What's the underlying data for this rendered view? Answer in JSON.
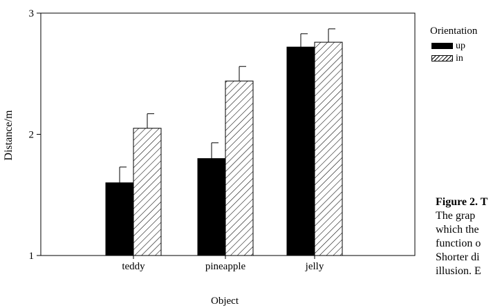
{
  "chart_data": {
    "type": "bar",
    "categories": [
      "teddy",
      "pineapple",
      "jelly"
    ],
    "series": [
      {
        "name": "up",
        "values": [
          1.6,
          1.8,
          2.72
        ],
        "errors": [
          0.13,
          0.13,
          0.11
        ]
      },
      {
        "name": "in",
        "values": [
          2.05,
          2.44,
          2.76
        ],
        "errors": [
          0.12,
          0.12,
          0.11
        ]
      }
    ],
    "xlabel": "Object",
    "ylabel": "Distance/m",
    "ylim": [
      1,
      3
    ],
    "yticks": [
      "1",
      "2",
      "3"
    ],
    "legend": {
      "title": "Orientation",
      "placement": "right"
    },
    "grid": false,
    "colors": {
      "up": "#000000",
      "in": "#ffffff"
    },
    "patterns": {
      "up": "solid",
      "in": "diagonal-hatch"
    }
  },
  "caption": {
    "title": "Figure 2. T",
    "lines": [
      "The grap",
      "which the",
      "function o",
      "Shorter di",
      "illusion. E"
    ]
  }
}
